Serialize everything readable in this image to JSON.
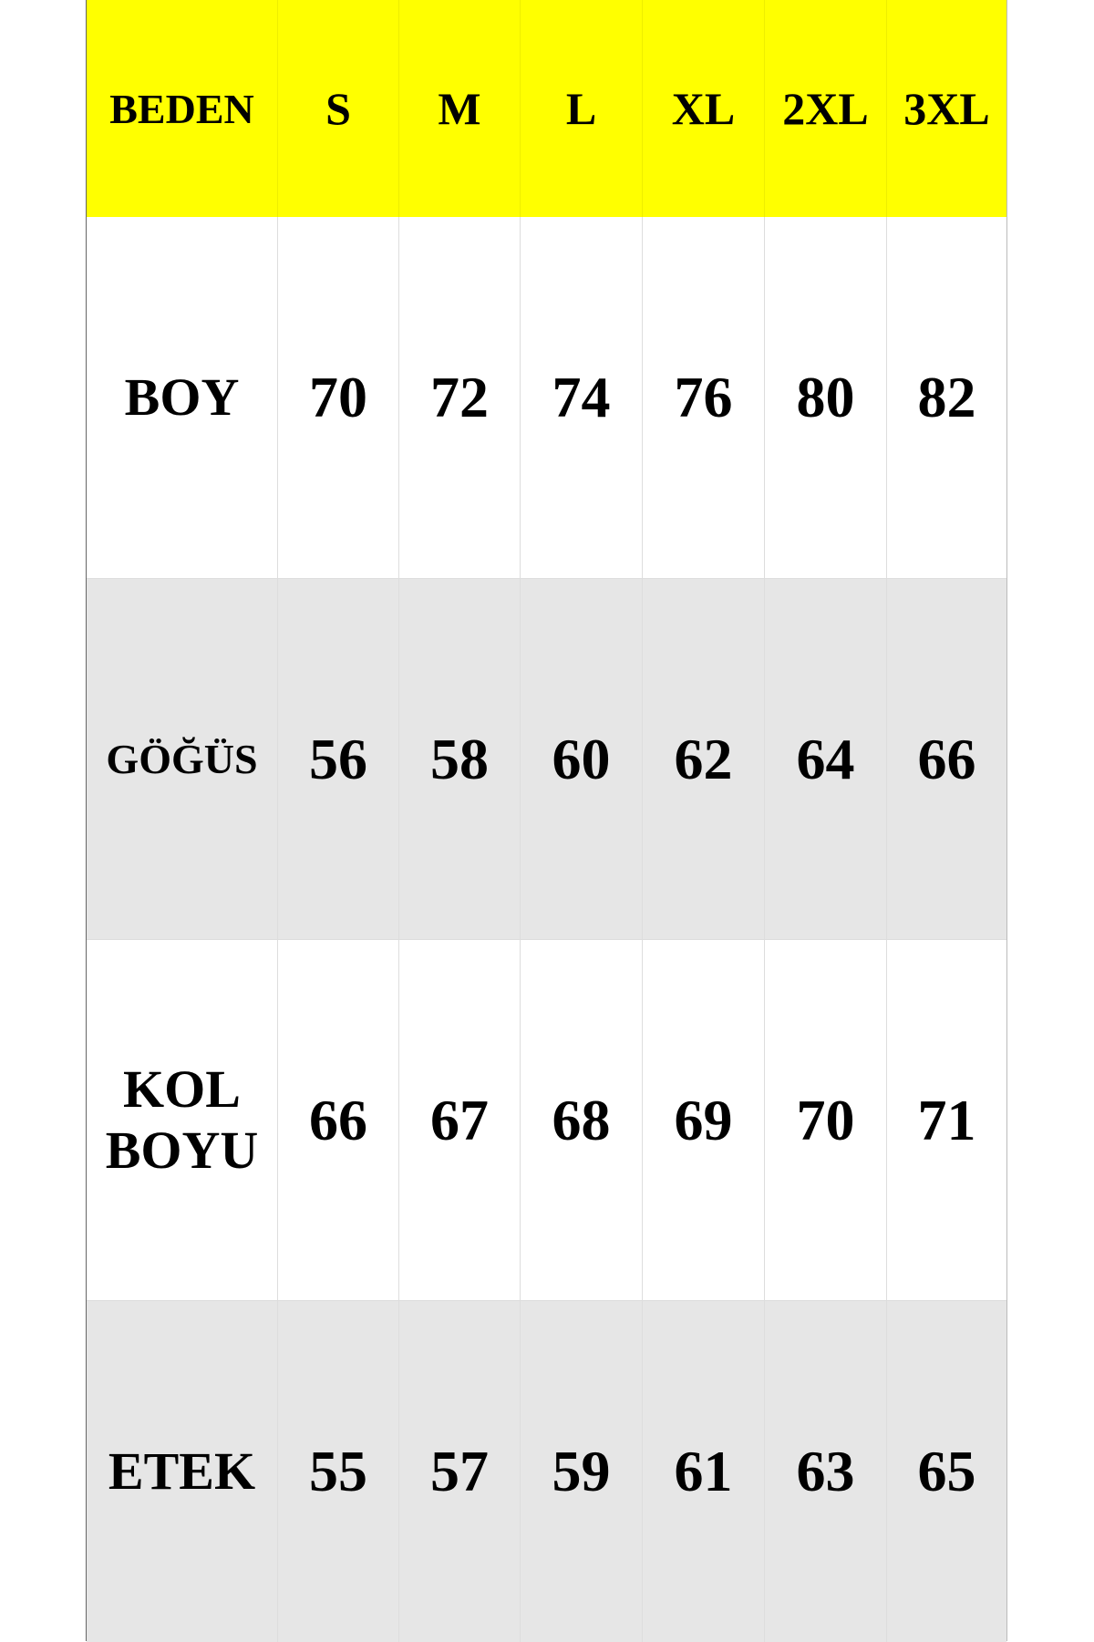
{
  "header": {
    "label": "BEDEN",
    "sizes": [
      "S",
      "M",
      "L",
      "XL",
      "2XL",
      "3XL"
    ]
  },
  "rows": [
    {
      "label": "BOY",
      "values": [
        "70",
        "72",
        "74",
        "76",
        "80",
        "82"
      ]
    },
    {
      "label": "GÖĞÜS",
      "values": [
        "56",
        "58",
        "60",
        "62",
        "64",
        "66"
      ]
    },
    {
      "label": "KOL BOYU",
      "values": [
        "66",
        "67",
        "68",
        "69",
        "70",
        "71"
      ]
    },
    {
      "label": "ETEK",
      "values": [
        "55",
        "57",
        "59",
        "61",
        "63",
        "65"
      ]
    }
  ],
  "colors": {
    "header_bg": "#ffff00",
    "alt_row_bg": "#e6e6e6",
    "row_bg": "#ffffff"
  }
}
